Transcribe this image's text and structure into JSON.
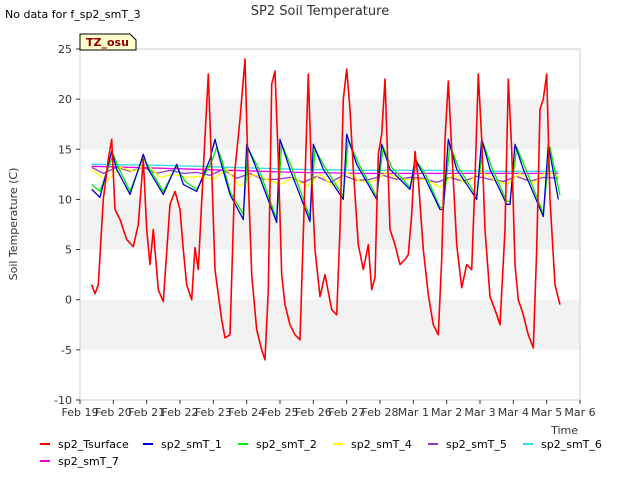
{
  "header": {
    "nodata_note": "No data for f_sp2_smT_3",
    "site_badge": "TZ_osu"
  },
  "colors": {
    "sp2_Tsurface": "#ff0000",
    "sp2_smT_1": "#0000cc",
    "sp2_smT_2": "#00ee00",
    "sp2_smT_4": "#ffff00",
    "sp2_smT_5": "#9933cc",
    "sp2_smT_6": "#33ddee",
    "sp2_smT_7": "#ee00ee",
    "band": "#f2f2f2",
    "badge_fill": "#ffffcc",
    "badge_text": "#8b0000"
  },
  "chart_data": {
    "type": "line",
    "title": "SP2 Soil Temperature",
    "xlabel": "Time",
    "ylabel": "Soil Temperature (C)",
    "xlim": [
      0,
      15
    ],
    "ylim": [
      -10,
      25
    ],
    "x_ticks": [
      0,
      1,
      2,
      3,
      4,
      5,
      6,
      7,
      8,
      9,
      10,
      11,
      12,
      13,
      14,
      15
    ],
    "x_tick_labels": [
      "Feb 19",
      "Feb 20",
      "Feb 21",
      "Feb 22",
      "Feb 23",
      "Feb 24",
      "Feb 25",
      "Feb 26",
      "Feb 27",
      "Feb 28",
      "Mar 1",
      "Mar 2",
      "Mar 3",
      "Mar 4",
      "Mar 5",
      "Mar 6"
    ],
    "y_ticks": [
      -10,
      -5,
      0,
      5,
      10,
      15,
      20,
      25
    ],
    "y_tick_labels": [
      "-10",
      "-5",
      "0",
      "5",
      "10",
      "15",
      "20",
      "25"
    ],
    "legend_position": "bottom",
    "grid": "alternating horizontal bands",
    "series": [
      {
        "name": "sp2_Tsurface",
        "color": "#ff0000",
        "x": [
          0.35,
          0.45,
          0.55,
          0.7,
          0.85,
          0.95,
          1.05,
          1.2,
          1.4,
          1.6,
          1.75,
          1.9,
          2.0,
          2.1,
          2.2,
          2.35,
          2.5,
          2.7,
          2.85,
          3.0,
          3.1,
          3.2,
          3.35,
          3.45,
          3.55,
          3.7,
          3.85,
          3.95,
          4.05,
          4.15,
          4.25,
          4.35,
          4.5,
          4.65,
          4.8,
          4.95,
          5.05,
          5.15,
          5.3,
          5.45,
          5.55,
          5.65,
          5.75,
          5.85,
          5.95,
          6.05,
          6.15,
          6.3,
          6.45,
          6.6,
          6.75,
          6.85,
          6.95,
          7.05,
          7.2,
          7.35,
          7.55,
          7.7,
          7.8,
          7.9,
          8.0,
          8.1,
          8.2,
          8.35,
          8.5,
          8.65,
          8.75,
          8.85,
          8.95,
          9.05,
          9.15,
          9.3,
          9.45,
          9.6,
          9.75,
          9.85,
          9.95,
          10.05,
          10.15,
          10.3,
          10.45,
          10.6,
          10.75,
          10.85,
          10.95,
          11.05,
          11.15,
          11.3,
          11.45,
          11.6,
          11.75,
          11.85,
          11.95,
          12.05,
          12.15,
          12.3,
          12.45,
          12.6,
          12.75,
          12.85,
          12.95,
          13.05,
          13.15,
          13.3,
          13.45,
          13.6,
          13.7,
          13.8,
          13.9,
          14.0,
          14.1,
          14.25,
          14.4
        ],
        "y": [
          1.5,
          0.6,
          1.5,
          10.0,
          14.0,
          16.0,
          9.0,
          8.0,
          6.0,
          5.3,
          7.5,
          14.0,
          7.0,
          3.5,
          7.0,
          1.0,
          -0.2,
          9.5,
          10.8,
          9.0,
          5.0,
          1.5,
          0.0,
          5.2,
          3.0,
          13.0,
          22.5,
          13.0,
          3.0,
          0.5,
          -2.0,
          -3.8,
          -3.5,
          13.0,
          18.0,
          24.0,
          12.0,
          2.5,
          -3.0,
          -5.0,
          -6.0,
          1.0,
          21.5,
          22.8,
          14.0,
          2.5,
          -0.5,
          -2.5,
          -3.5,
          -4.0,
          12.0,
          22.5,
          12.0,
          5.0,
          0.3,
          2.5,
          -1.0,
          -1.5,
          7.0,
          20.0,
          23.0,
          19.0,
          13.0,
          5.5,
          3.0,
          5.5,
          1.0,
          2.2,
          14.5,
          16.5,
          22.0,
          7.0,
          5.5,
          3.5,
          4.0,
          4.5,
          8.5,
          14.8,
          12.0,
          5.0,
          0.5,
          -2.5,
          -3.5,
          4.0,
          16.0,
          21.8,
          15.0,
          5.5,
          1.2,
          3.5,
          3.0,
          12.0,
          22.5,
          16.0,
          7.0,
          0.3,
          -1.0,
          -2.5,
          7.0,
          22.0,
          15.0,
          3.5,
          0.0,
          -1.5,
          -3.5,
          -4.8,
          5.0,
          19.0,
          20.0,
          22.5,
          10.0,
          1.5,
          -0.5
        ]
      },
      {
        "name": "sp2_smT_1",
        "color": "#0000cc",
        "x": [
          0.35,
          0.6,
          0.95,
          1.1,
          1.5,
          1.9,
          2.05,
          2.5,
          2.9,
          3.1,
          3.5,
          3.9,
          4.05,
          4.2,
          4.5,
          4.9,
          5.0,
          5.3,
          5.9,
          6.0,
          6.3,
          6.9,
          7.0,
          7.3,
          7.9,
          8.0,
          8.3,
          8.9,
          9.05,
          9.3,
          9.9,
          10.05,
          10.3,
          10.8,
          10.9,
          11.05,
          11.3,
          11.9,
          12.05,
          12.3,
          12.8,
          12.9,
          13.05,
          13.3,
          13.9,
          14.05,
          14.35
        ],
        "y": [
          11.0,
          10.2,
          14.8,
          13.0,
          10.5,
          14.5,
          13.0,
          10.5,
          13.5,
          11.5,
          10.8,
          14.0,
          16.0,
          14.0,
          10.5,
          8.0,
          15.5,
          13.0,
          7.7,
          16.0,
          13.0,
          7.8,
          15.5,
          13.0,
          10.0,
          16.5,
          13.5,
          10.0,
          15.5,
          13.0,
          11.0,
          14.0,
          12.5,
          9.0,
          9.0,
          16.0,
          13.0,
          10.0,
          16.0,
          13.0,
          9.5,
          9.5,
          15.5,
          13.0,
          8.3,
          15.5,
          10.0
        ]
      },
      {
        "name": "sp2_smT_2",
        "color": "#00ee00",
        "x": [
          0.35,
          0.6,
          1.0,
          1.15,
          1.5,
          1.9,
          2.1,
          2.5,
          2.9,
          3.15,
          3.5,
          3.95,
          4.1,
          4.25,
          4.5,
          4.9,
          5.05,
          5.35,
          5.9,
          6.05,
          6.35,
          6.9,
          7.05,
          7.35,
          7.9,
          8.05,
          8.35,
          8.9,
          9.1,
          9.35,
          9.9,
          10.1,
          10.35,
          10.8,
          10.9,
          11.1,
          11.35,
          11.9,
          12.1,
          12.35,
          12.8,
          12.9,
          13.1,
          13.35,
          13.9,
          14.1,
          14.4
        ],
        "y": [
          11.5,
          10.8,
          14.5,
          13.2,
          10.8,
          14.2,
          13.0,
          10.8,
          13.3,
          11.8,
          11.0,
          13.8,
          15.2,
          14.0,
          10.8,
          8.5,
          15.0,
          13.2,
          8.0,
          15.5,
          13.2,
          8.2,
          15.0,
          13.2,
          10.3,
          16.0,
          13.6,
          10.3,
          15.2,
          13.2,
          11.2,
          13.8,
          12.6,
          9.2,
          9.2,
          15.5,
          13.2,
          10.3,
          15.6,
          13.2,
          9.8,
          9.8,
          15.2,
          13.2,
          8.6,
          15.2,
          10.4
        ]
      },
      {
        "name": "sp2_smT_4",
        "color": "#ffff00",
        "x": [
          0.35,
          0.8,
          1.2,
          1.6,
          2.0,
          2.4,
          2.8,
          3.2,
          3.6,
          4.0,
          4.4,
          4.8,
          5.2,
          5.6,
          6.0,
          6.4,
          6.8,
          7.2,
          7.6,
          8.0,
          8.4,
          8.8,
          9.2,
          9.6,
          10.0,
          10.4,
          10.8,
          11.2,
          11.6,
          12.0,
          12.4,
          12.8,
          13.2,
          13.6,
          14.0,
          14.4
        ],
        "y": [
          13.0,
          11.8,
          13.2,
          12.8,
          13.5,
          12.2,
          12.5,
          12.2,
          12.3,
          12.0,
          13.0,
          11.3,
          12.5,
          12.0,
          11.5,
          12.2,
          11.3,
          12.5,
          11.3,
          12.7,
          11.8,
          11.8,
          12.7,
          12.0,
          12.0,
          12.0,
          11.2,
          12.5,
          11.5,
          12.8,
          12.0,
          11.5,
          12.6,
          11.6,
          12.8,
          12.2
        ]
      },
      {
        "name": "sp2_smT_5",
        "color": "#9933cc",
        "x": [
          0.35,
          0.7,
          1.1,
          1.5,
          1.9,
          2.3,
          2.7,
          3.1,
          3.5,
          3.9,
          4.3,
          4.7,
          5.1,
          5.5,
          5.9,
          6.3,
          6.7,
          7.1,
          7.5,
          7.9,
          8.3,
          8.7,
          9.1,
          9.5,
          9.9,
          10.3,
          10.7,
          11.1,
          11.5,
          11.9,
          12.3,
          12.7,
          13.1,
          13.5,
          13.9,
          14.35
        ],
        "y": [
          13.2,
          12.6,
          13.2,
          12.8,
          13.2,
          12.6,
          12.9,
          12.6,
          12.7,
          12.4,
          13.0,
          12.1,
          12.6,
          12.0,
          12.0,
          12.2,
          11.7,
          12.3,
          11.7,
          12.4,
          11.9,
          12.0,
          12.4,
          12.0,
          12.2,
          12.1,
          11.7,
          12.2,
          11.8,
          12.3,
          12.0,
          11.8,
          12.3,
          11.8,
          12.2,
          12.1
        ]
      },
      {
        "name": "sp2_smT_6",
        "color": "#33ddee",
        "x": [
          0.35,
          2.5,
          4.5,
          6.5,
          8.5,
          10.5,
          12.5,
          14.35
        ],
        "y": [
          13.5,
          13.4,
          13.2,
          13.0,
          12.9,
          12.9,
          12.8,
          12.8
        ]
      },
      {
        "name": "sp2_smT_7",
        "color": "#ee00ee",
        "x": [
          0.35,
          2.5,
          4.5,
          6.5,
          8.5,
          10.5,
          12.5,
          14.35
        ],
        "y": [
          13.3,
          13.1,
          12.9,
          12.7,
          12.6,
          12.6,
          12.6,
          12.6
        ]
      }
    ]
  }
}
